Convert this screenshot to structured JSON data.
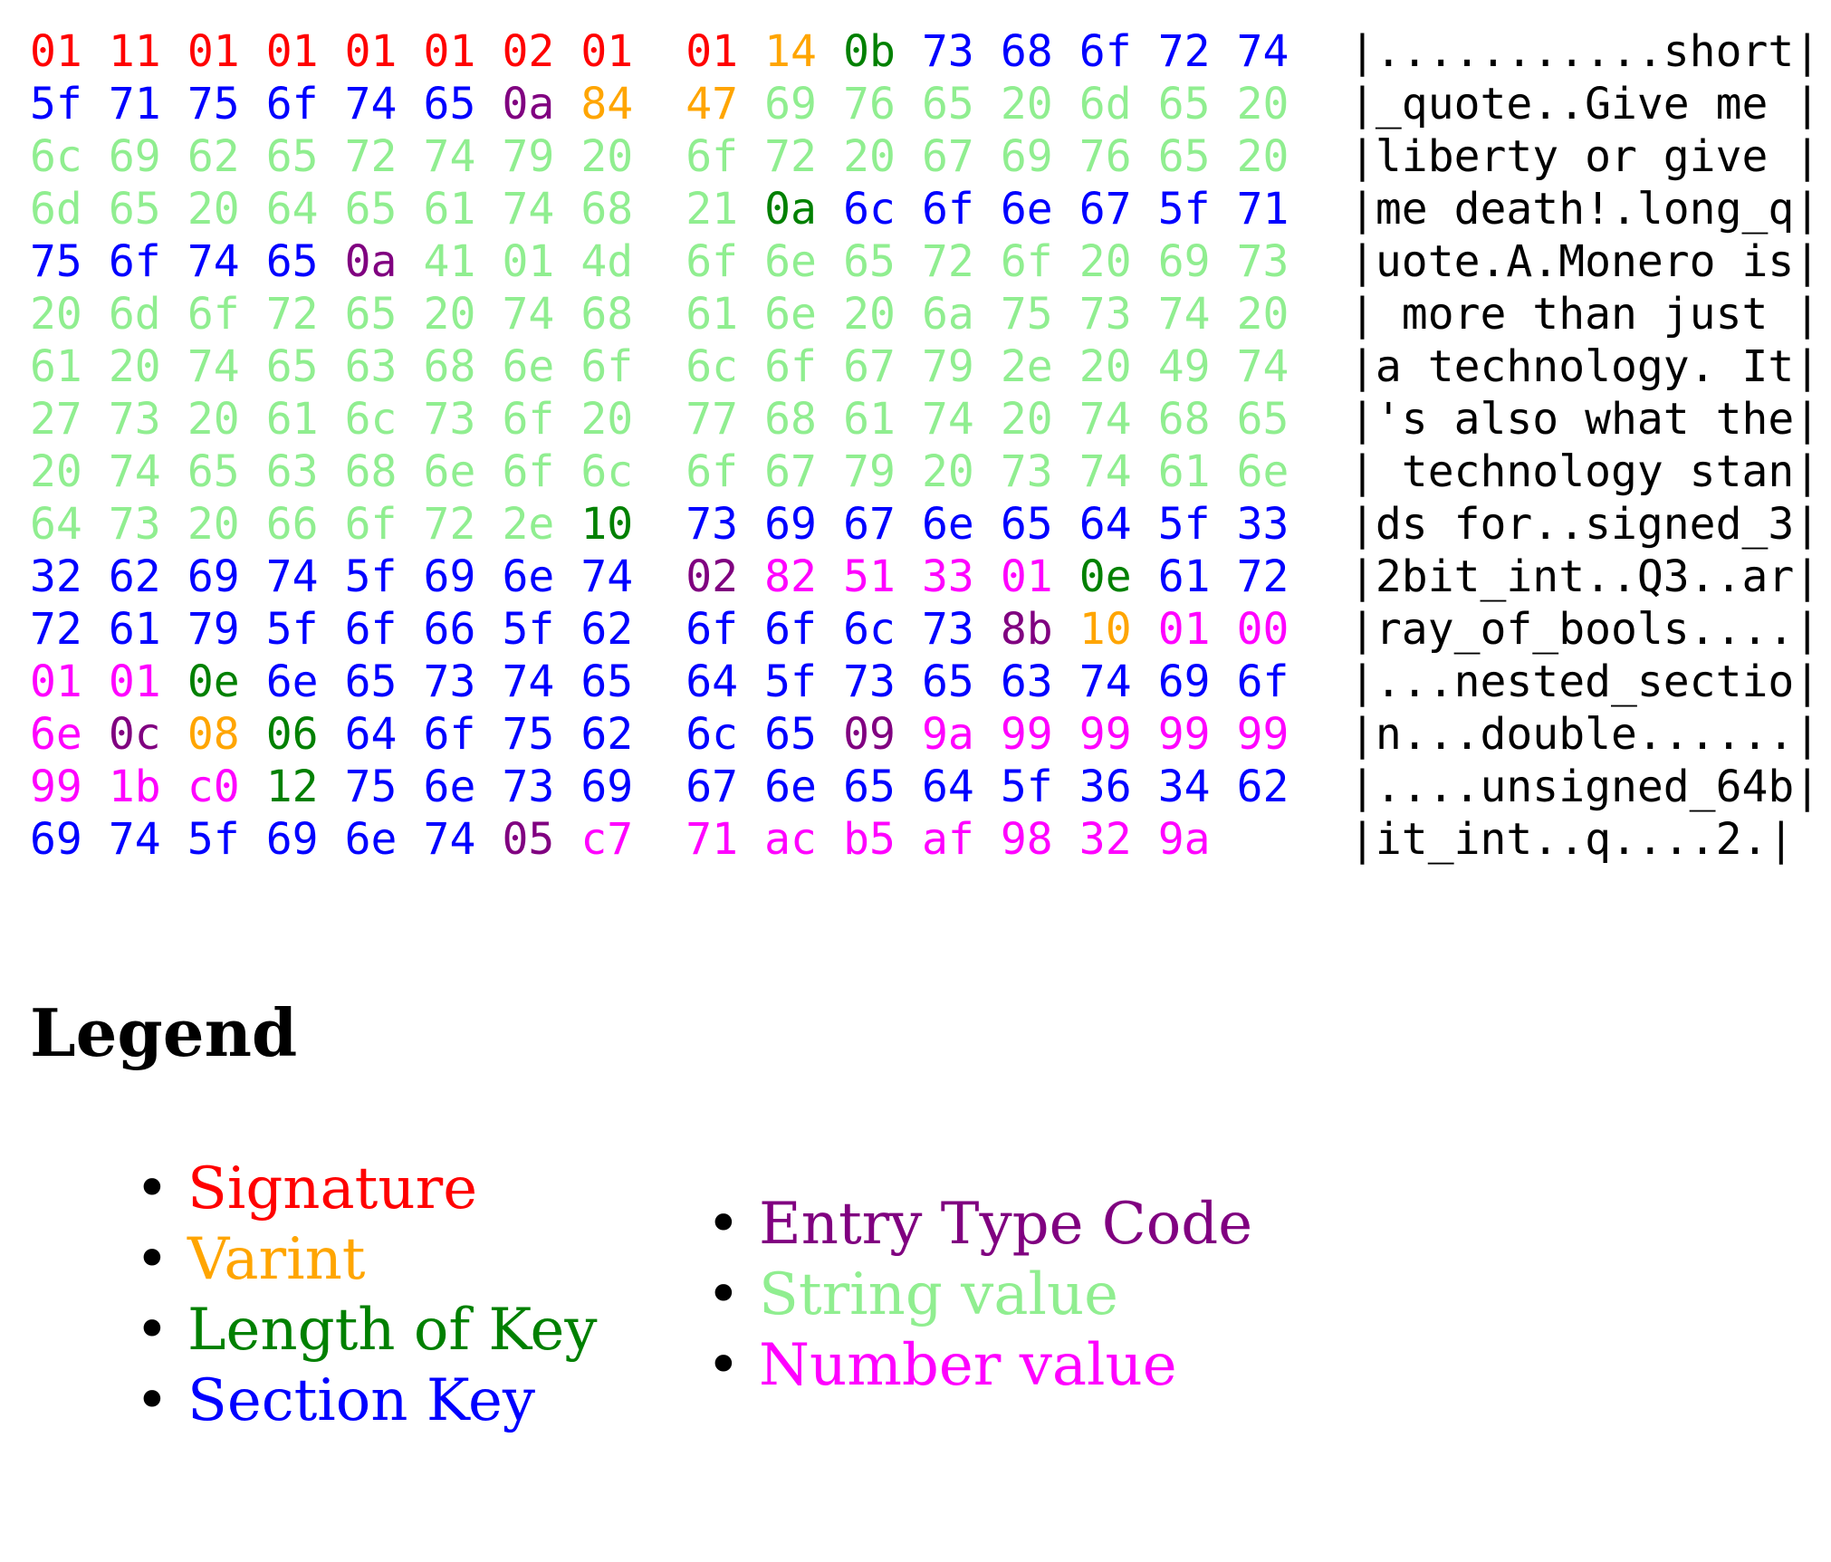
{
  "colors": {
    "S": "#ff0000",
    "V": "#ffa500",
    "L": "#008000",
    "K": "#0000ff",
    "T": "#800080",
    "s": "#90ee90",
    "N": "#ff00ff"
  },
  "hex_rows": [
    [
      "01S",
      "11S",
      "01S",
      "01S",
      "01S",
      "01S",
      "02S",
      "01S",
      "01S",
      "14V",
      "0bL",
      "73K",
      "68K",
      "6fK",
      "72K",
      "74K"
    ],
    [
      "5fK",
      "71K",
      "75K",
      "6fK",
      "74K",
      "65K",
      "0aT",
      "84V",
      "47V",
      "69s",
      "76s",
      "65s",
      "20s",
      "6ds",
      "65s",
      "20s"
    ],
    [
      "6cs",
      "69s",
      "62s",
      "65s",
      "72s",
      "74s",
      "79s",
      "20s",
      "6fs",
      "72s",
      "20s",
      "67s",
      "69s",
      "76s",
      "65s",
      "20s"
    ],
    [
      "6ds",
      "65s",
      "20s",
      "64s",
      "65s",
      "61s",
      "74s",
      "68s",
      "21s",
      "0aL",
      "6cK",
      "6fK",
      "6eK",
      "67K",
      "5fK",
      "71K"
    ],
    [
      "75K",
      "6fK",
      "74K",
      "65K",
      "0aT",
      "41s",
      "01s",
      "4ds",
      "6fs",
      "6es",
      "65s",
      "72s",
      "6fs",
      "20s",
      "69s",
      "73s"
    ],
    [
      "20s",
      "6ds",
      "6fs",
      "72s",
      "65s",
      "20s",
      "74s",
      "68s",
      "61s",
      "6es",
      "20s",
      "6as",
      "75s",
      "73s",
      "74s",
      "20s"
    ],
    [
      "61s",
      "20s",
      "74s",
      "65s",
      "63s",
      "68s",
      "6es",
      "6fs",
      "6cs",
      "6fs",
      "67s",
      "79s",
      "2es",
      "20s",
      "49s",
      "74s"
    ],
    [
      "27s",
      "73s",
      "20s",
      "61s",
      "6cs",
      "73s",
      "6fs",
      "20s",
      "77s",
      "68s",
      "61s",
      "74s",
      "20s",
      "74s",
      "68s",
      "65s"
    ],
    [
      "20s",
      "74s",
      "65s",
      "63s",
      "68s",
      "6es",
      "6fs",
      "6cs",
      "6fs",
      "67s",
      "79s",
      "20s",
      "73s",
      "74s",
      "61s",
      "6es"
    ],
    [
      "64s",
      "73s",
      "20s",
      "66s",
      "6fs",
      "72s",
      "2es",
      "10L",
      "73K",
      "69K",
      "67K",
      "6eK",
      "65K",
      "64K",
      "5fK",
      "33K"
    ],
    [
      "32K",
      "62K",
      "69K",
      "74K",
      "5fK",
      "69K",
      "6eK",
      "74K",
      "02T",
      "82N",
      "51N",
      "33N",
      "01N",
      "0eL",
      "61K",
      "72K"
    ],
    [
      "72K",
      "61K",
      "79K",
      "5fK",
      "6fK",
      "66K",
      "5fK",
      "62K",
      "6fK",
      "6fK",
      "6cK",
      "73K",
      "8bT",
      "10V",
      "01N",
      "00N"
    ],
    [
      "01N",
      "01N",
      "0eL",
      "6eK",
      "65K",
      "73K",
      "74K",
      "65K",
      "64K",
      "5fK",
      "73K",
      "65K",
      "63K",
      "74K",
      "69K",
      "6fK"
    ],
    [
      "6eN",
      "0cT",
      "08V",
      "06L",
      "64K",
      "6fK",
      "75K",
      "62K",
      "6cK",
      "65K",
      "09T",
      "9aN",
      "99N",
      "99N",
      "99N",
      "99N"
    ],
    [
      "99N",
      "1bN",
      "c0N",
      "12L",
      "75K",
      "6eK",
      "73K",
      "69K",
      "67K",
      "6eK",
      "65K",
      "64K",
      "5fK",
      "36K",
      "34K",
      "62K"
    ],
    [
      "69K",
      "74K",
      "5fK",
      "69K",
      "6eK",
      "74K",
      "05T",
      "c7N",
      "71N",
      "acN",
      "b5N",
      "afN",
      "98N",
      "32N",
      "9aN"
    ]
  ],
  "ascii_rows": [
    "|...........short|",
    "|_quote..Give me |",
    "|liberty or give |",
    "|me death!.long_q|",
    "|uote.A.Monero is|",
    "| more than just |",
    "|a technology. It|",
    "|'s also what the|",
    "| technology stan|",
    "|ds for..signed_3|",
    "|2bit_int..Q3..ar|",
    "|ray_of_bools....|",
    "|...nested_sectio|",
    "|n...double......|",
    "|....unsigned_64b|",
    "|it_int..q....2.|"
  ],
  "legend": {
    "title": "Legend",
    "bullet": "•",
    "left": [
      {
        "label": "Signature",
        "color": "#ff0000"
      },
      {
        "label": "Varint",
        "color": "#ffa500"
      },
      {
        "label": "Length of Key",
        "color": "#008000"
      },
      {
        "label": "Section Key",
        "color": "#0000ff"
      }
    ],
    "right": [
      {
        "label": "Entry Type Code",
        "color": "#800080"
      },
      {
        "label": "String value",
        "color": "#90ee90"
      },
      {
        "label": "Number value",
        "color": "#ff00ff"
      }
    ]
  }
}
